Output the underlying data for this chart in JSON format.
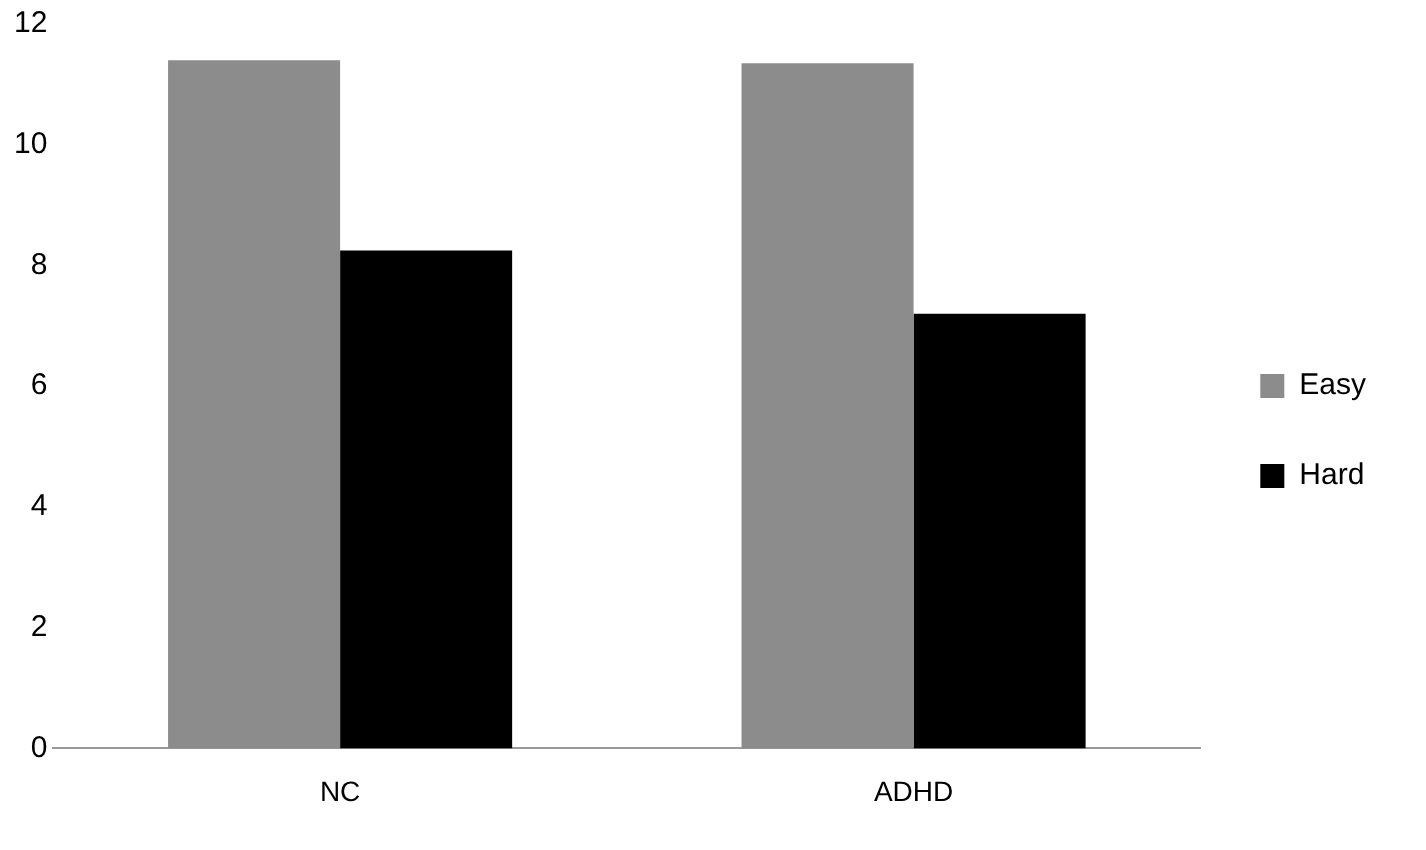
{
  "chart_data": {
    "type": "bar",
    "categories": [
      "NC",
      "ADHD"
    ],
    "series": [
      {
        "name": "Easy",
        "color": "#8c8c8c",
        "values": [
          11.4,
          11.35
        ]
      },
      {
        "name": "Hard",
        "color": "#000000",
        "values": [
          8.25,
          7.2
        ]
      }
    ],
    "ylim": [
      0,
      12
    ],
    "yticks": [
      0,
      2,
      4,
      6,
      8,
      10,
      12
    ],
    "grid": false,
    "legend": "right"
  }
}
